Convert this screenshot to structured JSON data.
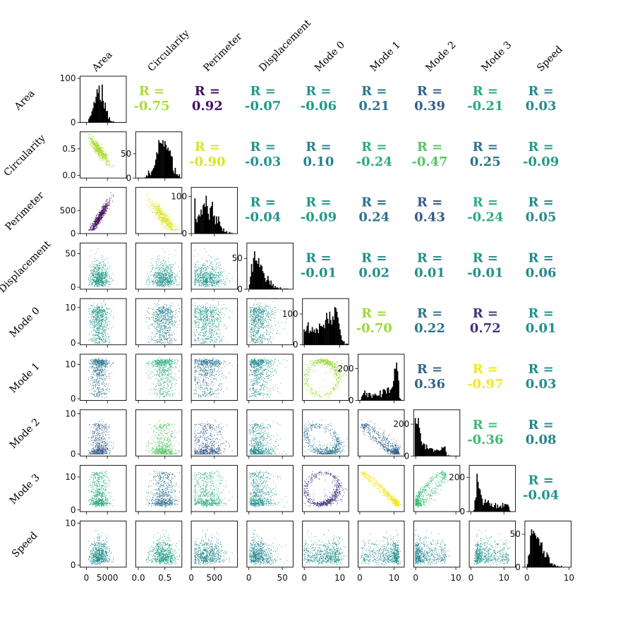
{
  "chart_data": {
    "type": "pairplot",
    "variables": [
      "Area",
      "Circularity",
      "Perimeter",
      "Displacement",
      "Mode 0",
      "Mode 1",
      "Mode 2",
      "Mode 3",
      "Speed"
    ],
    "corr_prefix": "R =",
    "correlations": [
      [
        null,
        -0.75,
        0.92,
        -0.07,
        -0.06,
        0.21,
        0.39,
        -0.21,
        0.03
      ],
      [
        null,
        null,
        -0.9,
        -0.03,
        0.1,
        -0.24,
        -0.47,
        0.25,
        -0.09
      ],
      [
        null,
        null,
        null,
        -0.04,
        -0.09,
        0.24,
        0.43,
        -0.24,
        0.05
      ],
      [
        null,
        null,
        null,
        null,
        -0.01,
        0.02,
        0.01,
        -0.01,
        0.06
      ],
      [
        null,
        null,
        null,
        null,
        null,
        -0.7,
        0.22,
        0.72,
        0.01
      ],
      [
        null,
        null,
        null,
        null,
        null,
        null,
        0.36,
        -0.97,
        0.03
      ],
      [
        null,
        null,
        null,
        null,
        null,
        null,
        null,
        -0.36,
        0.08
      ],
      [
        null,
        null,
        null,
        null,
        null,
        null,
        null,
        null,
        -0.04
      ],
      [
        null,
        null,
        null,
        null,
        null,
        null,
        null,
        null,
        null
      ]
    ],
    "ranges": [
      [
        -1500,
        9500
      ],
      [
        -0.05,
        0.82
      ],
      [
        0,
        1000
      ],
      [
        -3,
        66
      ],
      [
        -0.5,
        12.5
      ],
      [
        -0.5,
        13
      ],
      [
        -0.5,
        11
      ],
      [
        -0.5,
        13.5
      ],
      [
        -0.5,
        10.5
      ]
    ],
    "x_ticks": [
      [
        0,
        5000
      ],
      [
        0.0,
        0.5
      ],
      [
        0,
        500
      ],
      [
        0,
        50
      ],
      [
        0,
        10
      ],
      [
        0,
        10
      ],
      [
        0,
        10
      ],
      [
        0,
        10
      ],
      [
        0,
        10
      ]
    ],
    "x_tick_labels": [
      [
        "0",
        "5000"
      ],
      [
        "0.0",
        "0.5"
      ],
      [
        "0",
        "500"
      ],
      [
        "0",
        "50"
      ],
      [
        "0",
        "10"
      ],
      [
        "0",
        "10"
      ],
      [
        "0",
        "10"
      ],
      [
        "0",
        "10"
      ],
      [
        "0",
        "10"
      ]
    ],
    "y_ticks": [
      [
        0,
        100
      ],
      [
        0.0,
        0.5
      ],
      [
        0,
        500
      ],
      [
        0,
        50
      ],
      [
        0,
        10
      ],
      [
        0,
        10
      ],
      [
        0,
        10
      ],
      [
        0,
        10
      ],
      [
        0,
        10
      ]
    ],
    "y_tick_labels": [
      [
        "0",
        "100"
      ],
      [
        "0.0",
        "0.5"
      ],
      [
        "0",
        "500"
      ],
      [
        "0",
        "50"
      ],
      [
        "0",
        "10"
      ],
      [
        "0",
        "10"
      ],
      [
        "0",
        "10"
      ],
      [
        "0",
        "10"
      ],
      [
        "0",
        "10"
      ]
    ],
    "hist_max": [
      105,
      95,
      125,
      75,
      150,
      290,
      290,
      270,
      70
    ],
    "hist_ticks": [
      [
        0,
        100
      ],
      [
        0,
        50
      ],
      [
        0,
        100
      ],
      [
        0,
        50
      ],
      [
        0,
        100
      ],
      [
        0,
        200
      ],
      [
        0,
        200
      ],
      [
        0,
        200
      ],
      [
        0,
        50
      ]
    ],
    "hist_tick_labels": [
      [
        "0",
        "100"
      ],
      [
        "0",
        "50"
      ],
      [
        "0",
        "100"
      ],
      [
        "0",
        "50"
      ],
      [
        "0",
        "100"
      ],
      [
        "0",
        "200"
      ],
      [
        "0",
        "200"
      ],
      [
        "0",
        "200"
      ],
      [
        "0",
        "50"
      ]
    ],
    "colormap": "viridis"
  }
}
